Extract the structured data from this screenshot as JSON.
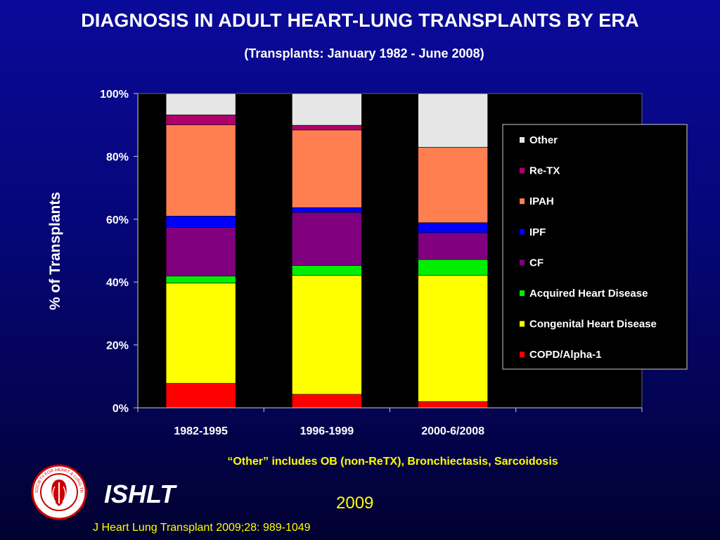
{
  "title": "DIAGNOSIS IN ADULT HEART-LUNG TRANSPLANTS BY ERA",
  "subtitle": "(Transplants: January 1982 - June 2008)",
  "footnote": "“Other” includes OB (non-ReTX), Bronchiectasis, Sarcoidosis",
  "org_name": "ISHLT",
  "year": "2009",
  "citation": "J Heart Lung Transplant 2009;28: 989-1049",
  "logo": {
    "icon": "ishlt-seal-icon",
    "text": "INTERNATIONAL SOCIETY FOR HEART & LUNG TRANSPLANTATION"
  },
  "colors": {
    "title": "#ffffff",
    "footnote": "#ffff00",
    "year": "#ffff00",
    "citation": "#ffff00",
    "plot_background": "#000000"
  },
  "chart_data": {
    "type": "bar",
    "stacked": true,
    "percent_stacked": true,
    "ylabel": "% of Transplants",
    "xlabel": "",
    "ylim": [
      0,
      100
    ],
    "yticks": [
      0,
      20,
      40,
      60,
      80,
      100
    ],
    "ytick_labels": [
      "0%",
      "20%",
      "40%",
      "60%",
      "80%",
      "100%"
    ],
    "categories": [
      "1982-1995",
      "1996-1999",
      "2000-6/2008"
    ],
    "legend_position": "right",
    "series": [
      {
        "name": "COPD/Alpha-1",
        "color": "#ff0000",
        "values": [
          7.8,
          4.3,
          2.0
        ]
      },
      {
        "name": "Congenital Heart Disease",
        "color": "#ffff00",
        "values": [
          31.9,
          37.9,
          40.2
        ]
      },
      {
        "name": "Acquired Heart Disease",
        "color": "#00ee00",
        "values": [
          2.2,
          3.1,
          5.0
        ]
      },
      {
        "name": "CF",
        "color": "#800080",
        "values": [
          15.5,
          16.9,
          8.5
        ]
      },
      {
        "name": "IPF",
        "color": "#0000ff",
        "values": [
          3.6,
          1.5,
          3.2
        ]
      },
      {
        "name": "IPAH",
        "color": "#ff7f50",
        "values": [
          29.0,
          24.7,
          24.0
        ]
      },
      {
        "name": "Re-TX",
        "color": "#b0006a",
        "values": [
          3.2,
          1.5,
          0.0
        ]
      },
      {
        "name": "Other",
        "color": "#e6e6e6",
        "values": [
          6.8,
          10.1,
          17.1
        ]
      }
    ]
  }
}
